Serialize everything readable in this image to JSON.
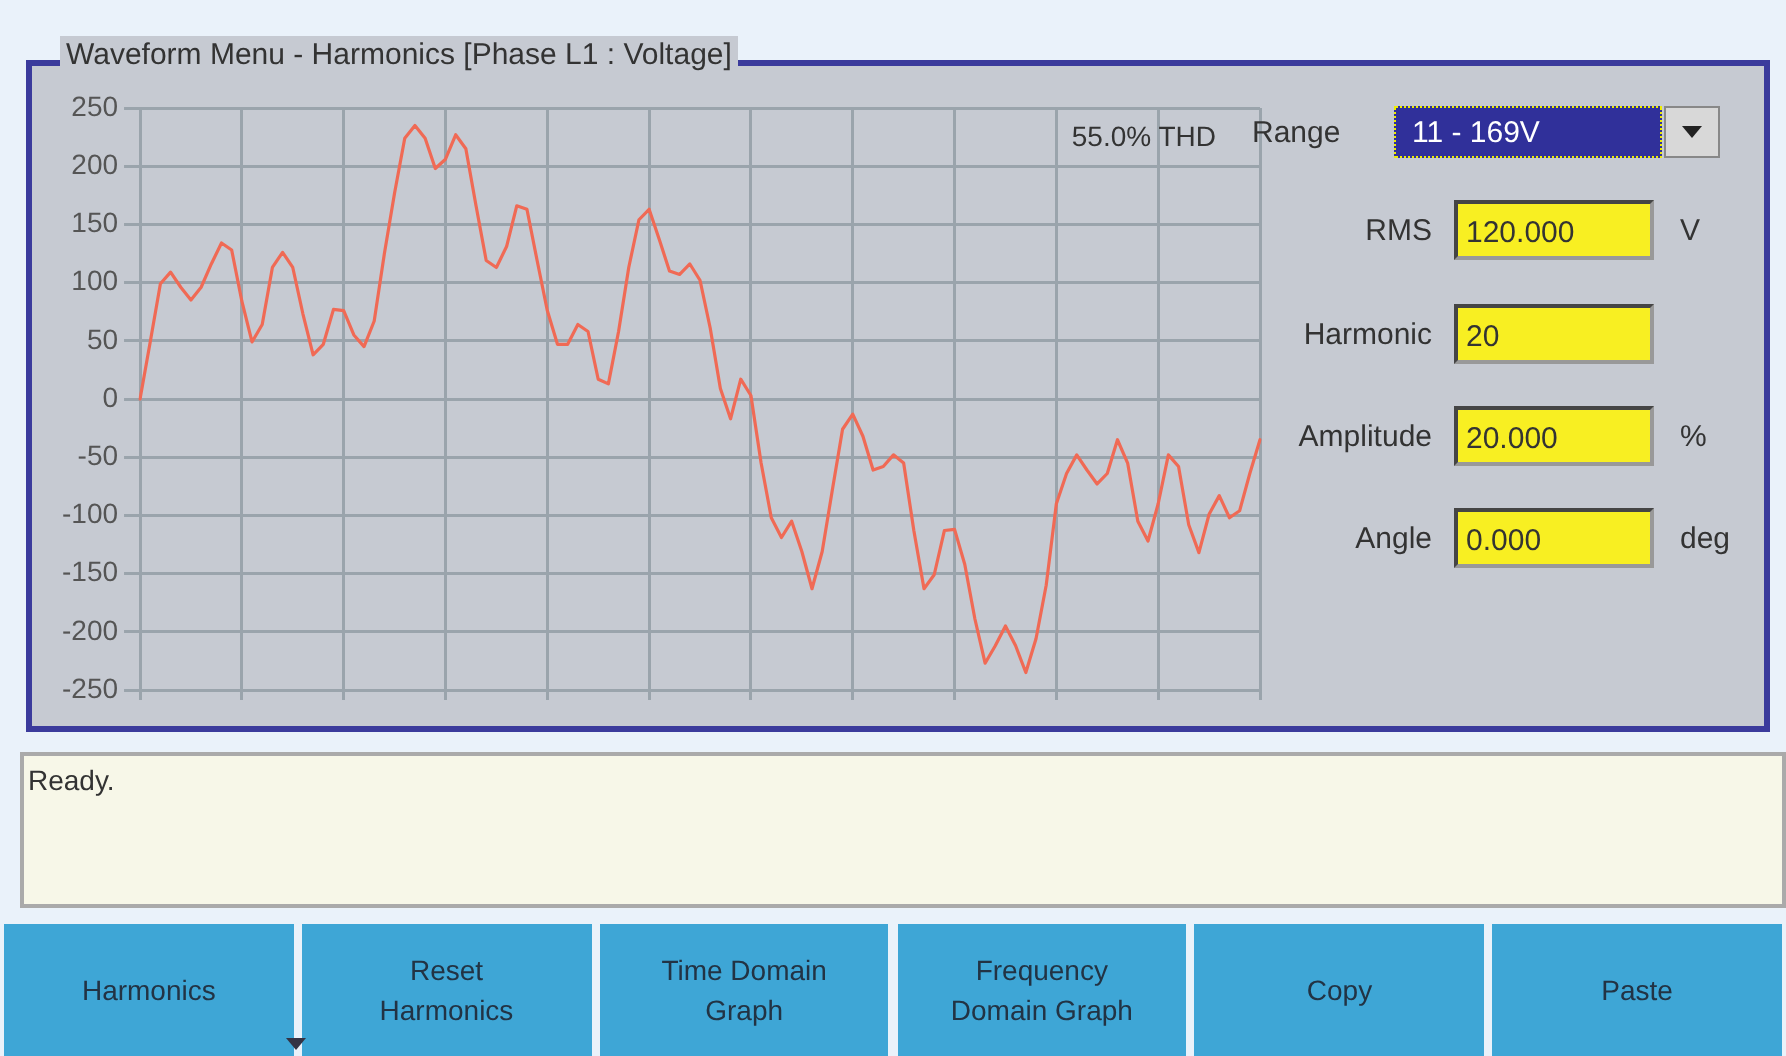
{
  "chart_data": {
    "type": "line",
    "title": "Waveform Menu - Harmonics [Phase L1 : Voltage]",
    "categories": [
      null,
      null,
      null,
      null,
      null,
      null,
      null,
      null,
      null,
      null,
      null,
      null,
      null,
      null,
      null,
      null,
      null,
      null,
      null,
      null,
      null,
      null,
      null,
      null,
      null,
      null,
      null,
      null,
      null,
      null,
      null,
      null,
      null,
      null,
      null,
      null,
      null,
      null,
      null,
      null,
      null,
      null,
      null,
      null,
      null,
      null,
      null,
      null,
      null,
      null,
      null,
      null,
      null,
      null,
      null,
      null,
      null,
      null,
      null,
      null,
      null,
      null,
      null,
      null,
      null,
      null,
      null,
      null,
      null,
      null,
      null,
      null,
      null,
      null,
      null,
      null,
      null,
      null,
      null,
      null,
      null,
      null,
      null,
      null,
      null,
      null,
      null,
      null,
      null,
      null,
      null,
      null,
      null,
      null,
      null,
      null,
      null,
      null,
      null,
      null,
      null,
      null,
      null,
      null,
      null,
      null,
      null,
      null,
      null,
      null,
      null
    ],
    "series": [
      {
        "color": "#f06a55",
        "values": [
          0,
          49,
          99,
          109,
          96,
          85,
          96,
          116,
          134,
          128,
          84,
          49,
          64,
          113,
          126,
          113,
          73,
          38,
          47,
          77,
          76,
          55,
          45,
          67,
          125,
          177,
          224,
          235,
          224,
          198,
          206,
          227,
          215,
          166,
          119,
          113,
          131,
          166,
          163,
          119,
          76,
          47,
          47,
          64,
          58,
          17,
          13,
          58,
          113,
          154,
          163,
          137,
          110,
          107,
          116,
          102,
          61,
          9,
          -17,
          17,
          3,
          -55,
          -102,
          -119,
          -105,
          -131,
          -163,
          -131,
          -78,
          -26,
          -13,
          -32,
          -61,
          -58,
          -48,
          -55,
          -113,
          -163,
          -151,
          -113,
          -112,
          -142,
          -189,
          -227,
          -212,
          -195,
          -212,
          -235,
          -206,
          -160,
          -90,
          -64,
          -48,
          -61,
          -73,
          -64,
          -35,
          -55,
          -105,
          -122,
          -90,
          -48,
          -58,
          -108,
          -132,
          -99,
          -83,
          -102,
          -96,
          -64,
          -35
        ]
      }
    ],
    "ylim": [
      -250,
      250
    ],
    "yticks": [
      -250,
      -200,
      -150,
      -100,
      -50,
      0,
      50,
      100,
      150,
      200,
      250
    ],
    "grid": true,
    "annotations": [
      "55.0% THD",
      "Range",
      "11 - 169V",
      "RMS",
      "120.000",
      "V",
      "Harmonic",
      "20",
      "Amplitude",
      "20.000",
      "%",
      "Angle",
      "0.000",
      "deg",
      "Ready.",
      "Harmonics",
      "Reset Harmonics",
      "Time Domain Graph",
      "Frequency Domain Graph",
      "Copy",
      "Paste"
    ]
  }
}
